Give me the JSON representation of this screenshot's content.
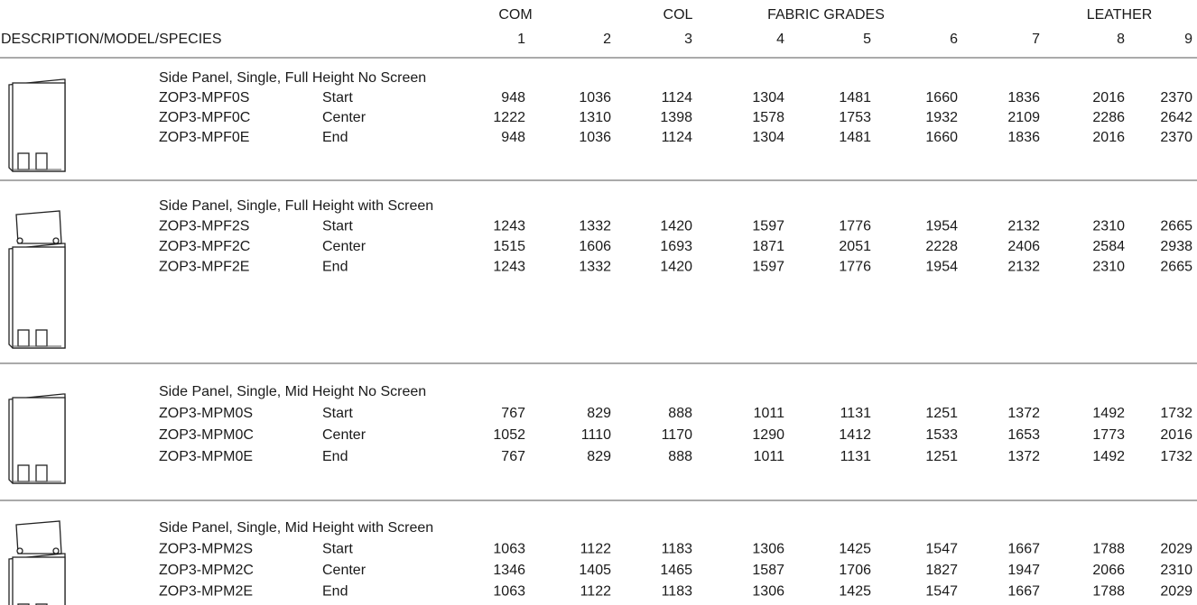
{
  "header": {
    "groups": [
      "COM",
      "COL",
      "FABRIC GRADES",
      "LEATHER"
    ],
    "description_label": "DESCRIPTION/MODEL/SPECIES",
    "grades": [
      "1",
      "2",
      "3",
      "4",
      "5",
      "6",
      "7",
      "8",
      "9"
    ]
  },
  "sections": [
    {
      "title": "Side Panel, Single, Full Height No Screen",
      "rows": [
        {
          "model": "ZOP3-MPF0S",
          "species": "Start",
          "prices": [
            948,
            1036,
            1124,
            1304,
            1481,
            1660,
            1836,
            2016,
            2370
          ]
        },
        {
          "model": "ZOP3-MPF0C",
          "species": "Center",
          "prices": [
            1222,
            1310,
            1398,
            1578,
            1753,
            1932,
            2109,
            2286,
            2642
          ]
        },
        {
          "model": "ZOP3-MPF0E",
          "species": "End",
          "prices": [
            948,
            1036,
            1124,
            1304,
            1481,
            1660,
            1836,
            2016,
            2370
          ]
        }
      ]
    },
    {
      "title": "Side Panel, Single, Full Height with Screen",
      "rows": [
        {
          "model": "ZOP3-MPF2S",
          "species": "Start",
          "prices": [
            1243,
            1332,
            1420,
            1597,
            1776,
            1954,
            2132,
            2310,
            2665
          ]
        },
        {
          "model": "ZOP3-MPF2C",
          "species": "Center",
          "prices": [
            1515,
            1606,
            1693,
            1871,
            2051,
            2228,
            2406,
            2584,
            2938
          ]
        },
        {
          "model": "ZOP3-MPF2E",
          "species": "End",
          "prices": [
            1243,
            1332,
            1420,
            1597,
            1776,
            1954,
            2132,
            2310,
            2665
          ]
        }
      ]
    },
    {
      "title": "Side Panel, Single, Mid Height No Screen",
      "rows": [
        {
          "model": "ZOP3-MPM0S",
          "species": "Start",
          "prices": [
            767,
            829,
            888,
            1011,
            1131,
            1251,
            1372,
            1492,
            1732
          ]
        },
        {
          "model": "ZOP3-MPM0C",
          "species": "Center",
          "prices": [
            1052,
            1110,
            1170,
            1290,
            1412,
            1533,
            1653,
            1773,
            2016
          ]
        },
        {
          "model": "ZOP3-MPM0E",
          "species": "End",
          "prices": [
            767,
            829,
            888,
            1011,
            1131,
            1251,
            1372,
            1492,
            1732
          ]
        }
      ]
    },
    {
      "title": "Side Panel, Single, Mid Height with Screen",
      "rows": [
        {
          "model": "ZOP3-MPM2S",
          "species": "Start",
          "prices": [
            1063,
            1122,
            1183,
            1306,
            1425,
            1547,
            1667,
            1788,
            2029
          ]
        },
        {
          "model": "ZOP3-MPM2C",
          "species": "Center",
          "prices": [
            1346,
            1405,
            1465,
            1587,
            1706,
            1827,
            1947,
            2066,
            2310
          ]
        },
        {
          "model": "ZOP3-MPM2E",
          "species": "End",
          "prices": [
            1063,
            1122,
            1183,
            1306,
            1425,
            1547,
            1667,
            1788,
            2029
          ]
        }
      ]
    }
  ]
}
